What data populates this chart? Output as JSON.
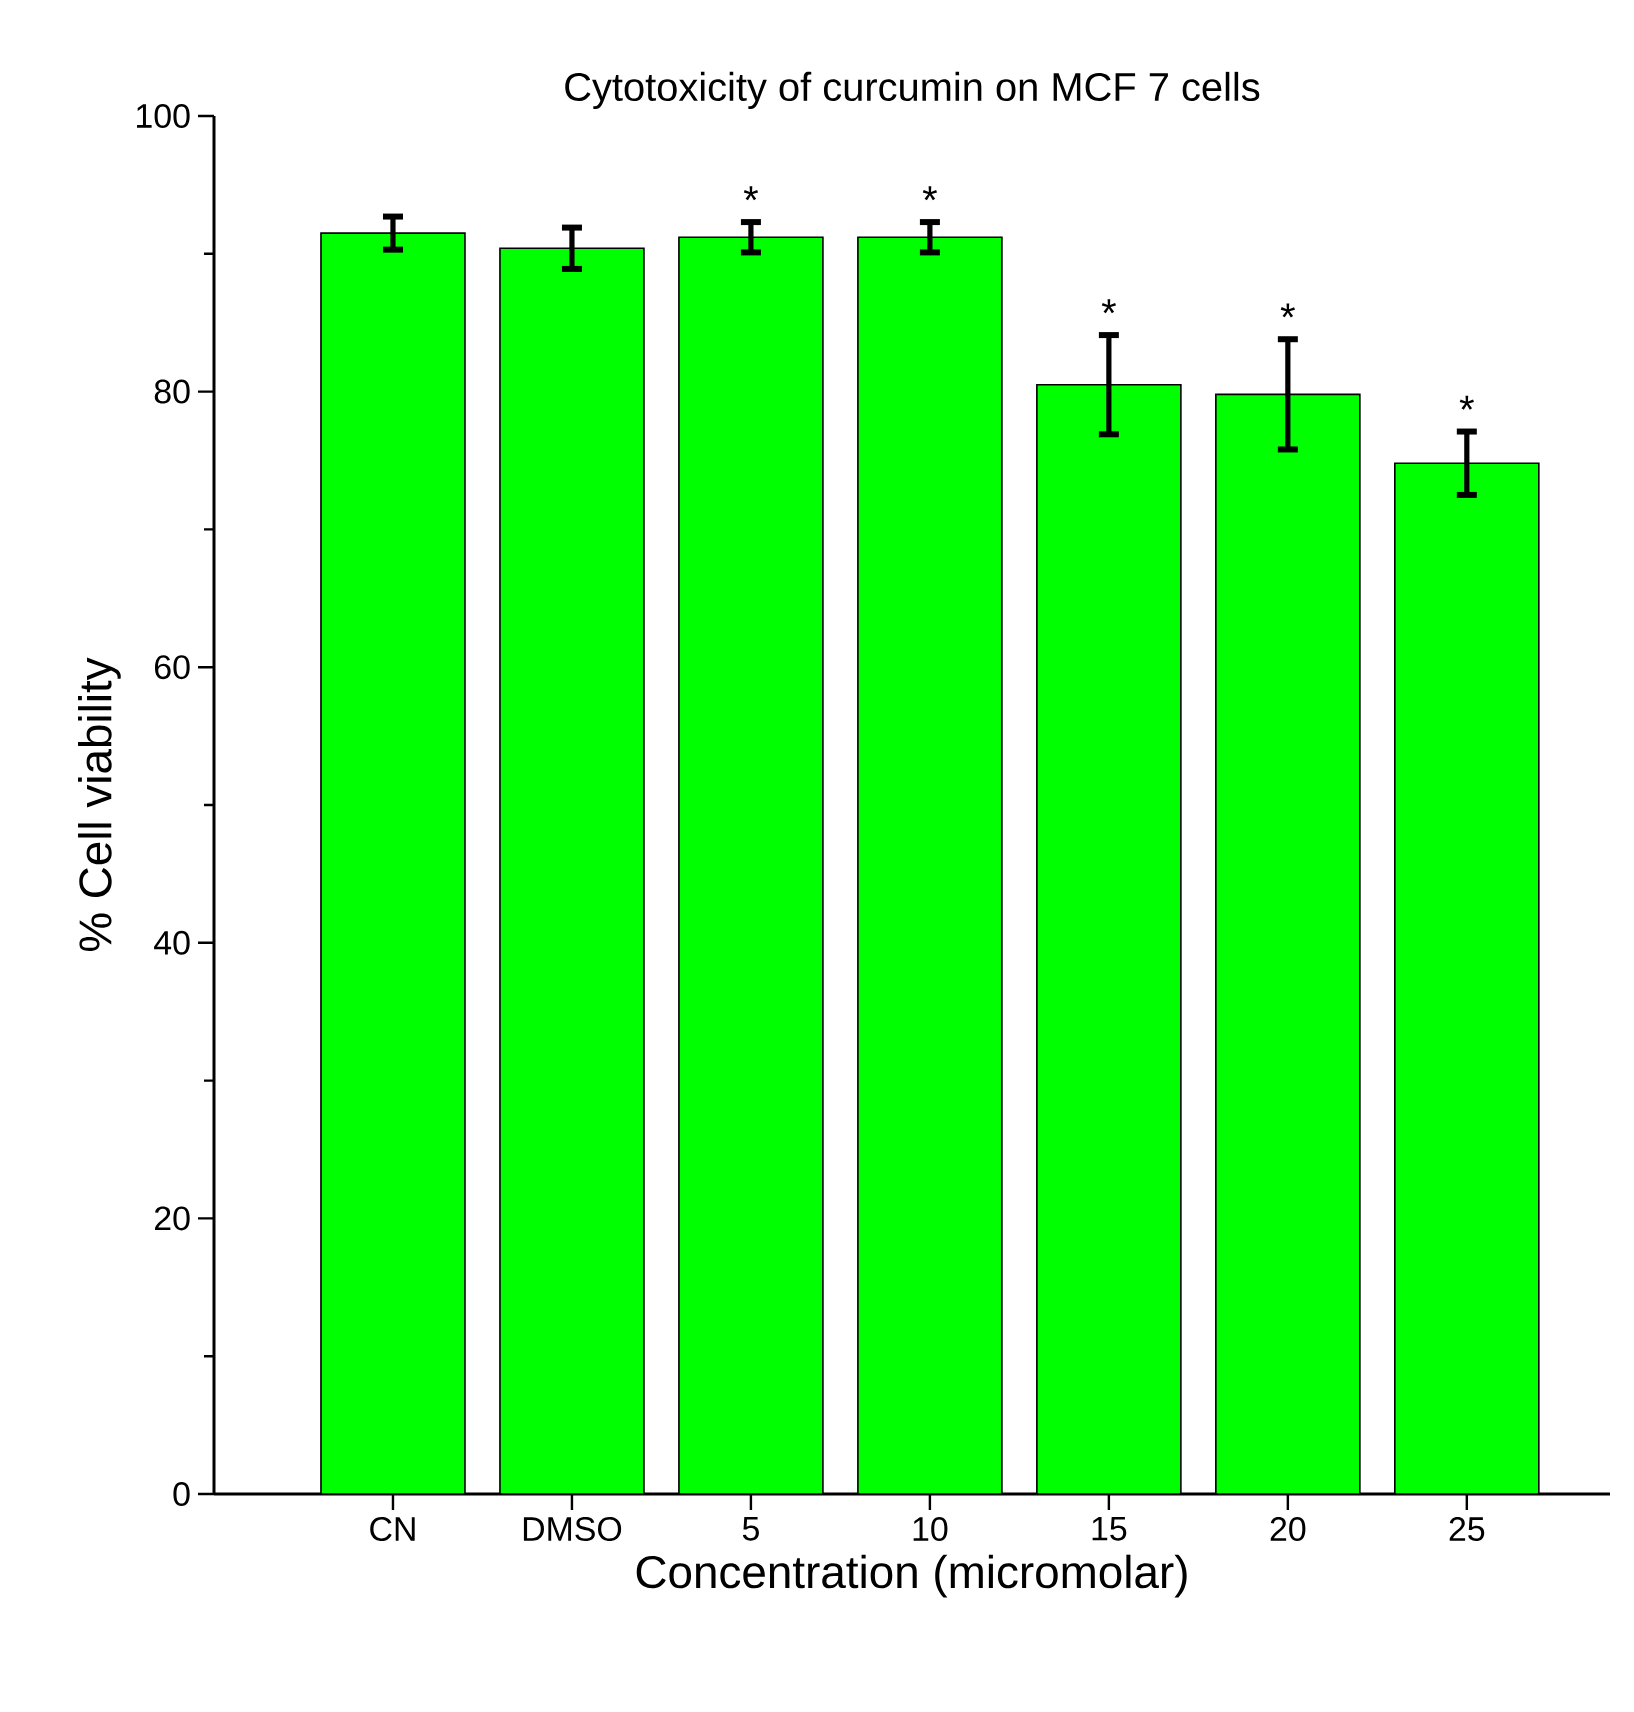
{
  "chart_data": {
    "type": "bar",
    "title": "Cytotoxicity of curcumin on MCF 7 cells",
    "xlabel": "Concentration (micromolar)",
    "ylabel": "% Cell viability",
    "categories": [
      "CN",
      "DMSO",
      "5",
      "10",
      "15",
      "20",
      "25"
    ],
    "values": [
      91.5,
      90.4,
      91.2,
      91.2,
      80.5,
      79.8,
      74.8
    ],
    "errors": [
      1.2,
      1.5,
      1.1,
      1.1,
      3.6,
      4.0,
      2.3
    ],
    "color": "#00ff00",
    "ylim": [
      0,
      100
    ],
    "yticks": [
      0,
      20,
      40,
      60,
      80,
      100
    ],
    "annotations": [
      {
        "text": "*",
        "x": "5",
        "y": 92.3
      },
      {
        "text": "*",
        "x": "10",
        "y": 92.3
      },
      {
        "text": "*",
        "x": "15",
        "y": 84.1
      },
      {
        "text": "*",
        "x": "20",
        "y": 83.8
      },
      {
        "text": "*",
        "x": "25",
        "y": 77.1
      }
    ]
  }
}
